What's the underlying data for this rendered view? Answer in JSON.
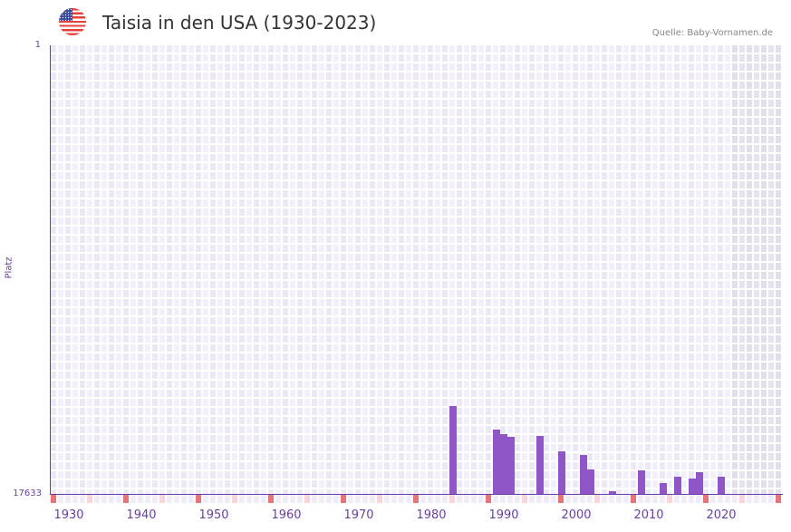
{
  "header": {
    "title": "Taisia in den USA (1930-2023)",
    "source": "Quelle: Baby-Vornamen.de",
    "flag_icon": "us-flag-icon"
  },
  "axis": {
    "y_top": "1",
    "y_bottom": "17633",
    "y_title": "Platz",
    "x_ticks": [
      "1930",
      "1940",
      "1950",
      "1960",
      "1970",
      "1980",
      "1990",
      "2000",
      "2010",
      "2020"
    ]
  },
  "colors": {
    "bar": "#8e56c6",
    "axis": "#6b3fa0",
    "decade_marker": "#e8737a",
    "half_decade_marker": "#f6d5dd"
  },
  "chart_data": {
    "type": "bar",
    "title": "Taisia in den USA (1930-2023)",
    "xlabel": "",
    "ylabel": "Platz",
    "ylim": [
      17633,
      1
    ],
    "y_inverted": true,
    "x_range": [
      1928,
      2028
    ],
    "shaded_future_from": 2022,
    "categories": [
      "1983",
      "1989",
      "1990",
      "1991",
      "1995",
      "1998",
      "2001",
      "2002",
      "2005",
      "2009",
      "2012",
      "2014",
      "2016",
      "2017",
      "2020"
    ],
    "values": [
      14180,
      15100,
      15280,
      15390,
      15350,
      15960,
      16100,
      16670,
      17520,
      16710,
      17210,
      16960,
      17030,
      16780,
      16960
    ],
    "series": [
      {
        "name": "Platz",
        "values": [
          14180,
          15100,
          15280,
          15390,
          15350,
          15960,
          16100,
          16670,
          17520,
          16710,
          17210,
          16960,
          17030,
          16780,
          16960
        ]
      }
    ],
    "grid": true
  }
}
